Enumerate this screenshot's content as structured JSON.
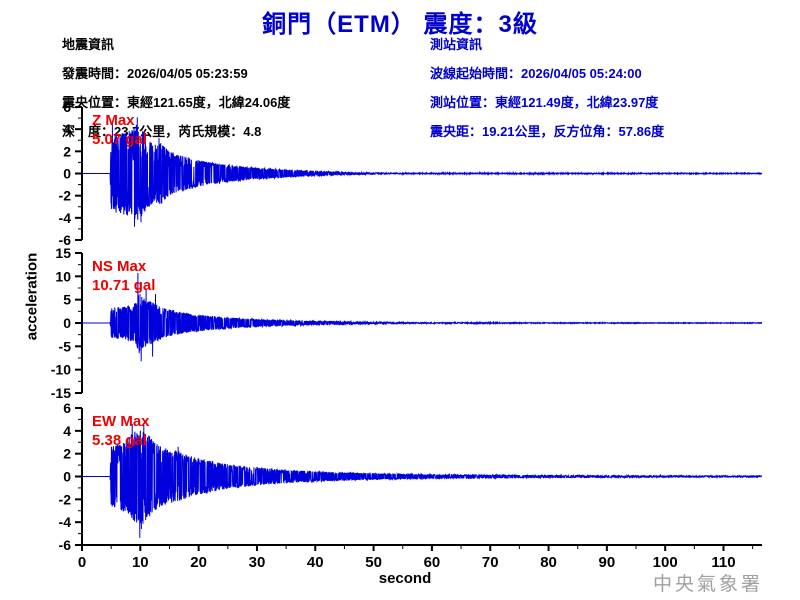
{
  "title": "銅門（ETM） 震度：3級",
  "event_info": {
    "heading": "地震資訊",
    "lines": [
      "發震時間：2026/04/05 05:23:59",
      "震央位置：東經121.65度，北緯24.06度",
      "深　度：23.7公里，芮氏規模：4.8"
    ]
  },
  "station_info": {
    "heading": "測站資訊",
    "lines": [
      "波線起始時間：2026/04/05 05:24:00",
      "測站位置：東經121.49度，北緯23.97度",
      "震央距：19.21公里，反方位角：57.86度"
    ]
  },
  "watermark": "中央氣象署",
  "colors": {
    "title": "#0000cc",
    "event_info": "#000000",
    "station_info": "#0000cc",
    "trace": "#0000dd",
    "trace_label": "#ee0000",
    "axis": "#000000",
    "watermark": "#a0a0a0"
  },
  "chart_data": {
    "type": "line",
    "title": "銅門（ETM） 震度：3級",
    "xlabel": "second",
    "ylabel": "acceleration",
    "xlim": [
      0,
      116.6
    ],
    "x_major_ticks": [
      0,
      10,
      20,
      30,
      40,
      50,
      60,
      70,
      80,
      90,
      100,
      110
    ],
    "x_minor_step": 5,
    "grid": false,
    "legend": "none",
    "traces": [
      {
        "name": "Z",
        "label": "Z Max",
        "max_text": "5.07 gal",
        "max_gal": 5.07,
        "ylim": [
          -6,
          6
        ],
        "y_major_ticks": [
          6,
          4,
          2,
          0,
          -2,
          -4,
          -6
        ],
        "y_minor_step": 1,
        "onset_s": 4.8,
        "envelope": [
          [
            0,
            0
          ],
          [
            4.8,
            0
          ],
          [
            5.0,
            3.4
          ],
          [
            6,
            3.6
          ],
          [
            8,
            3.8
          ],
          [
            9.5,
            4.5
          ],
          [
            10.5,
            3.8
          ],
          [
            11.5,
            3.0
          ],
          [
            12.5,
            2.6
          ],
          [
            13.5,
            2.8
          ],
          [
            15,
            2.0
          ],
          [
            17,
            1.6
          ],
          [
            20,
            1.2
          ],
          [
            24,
            0.85
          ],
          [
            28,
            0.6
          ],
          [
            32,
            0.45
          ],
          [
            36,
            0.32
          ],
          [
            40,
            0.22
          ],
          [
            45,
            0.12
          ],
          [
            50,
            0.07
          ],
          [
            55,
            0.04
          ],
          [
            116.6,
            0.03
          ]
        ],
        "spikes": [
          [
            5.2,
            4.6
          ],
          [
            9.0,
            -4.8
          ],
          [
            9.5,
            5.07
          ],
          [
            10.1,
            -4.4
          ],
          [
            13.2,
            3.2
          ]
        ]
      },
      {
        "name": "NS",
        "label": "NS Max",
        "max_text": "10.71 gal",
        "max_gal": 10.71,
        "ylim": [
          -15,
          15
        ],
        "y_major_ticks": [
          15,
          10,
          5,
          0,
          -5,
          -10,
          -15
        ],
        "y_minor_step": 2.5,
        "onset_s": 4.8,
        "envelope": [
          [
            0,
            0
          ],
          [
            4.8,
            0
          ],
          [
            5,
            3.2
          ],
          [
            7,
            3.5
          ],
          [
            9,
            4.0
          ],
          [
            9.8,
            6.5
          ],
          [
            11,
            5.0
          ],
          [
            12.5,
            4.2
          ],
          [
            14,
            3.2
          ],
          [
            16,
            2.6
          ],
          [
            18,
            2.1
          ],
          [
            20,
            1.8
          ],
          [
            24,
            1.3
          ],
          [
            28,
            0.95
          ],
          [
            32,
            0.7
          ],
          [
            36,
            0.55
          ],
          [
            40,
            0.42
          ],
          [
            45,
            0.3
          ],
          [
            50,
            0.22
          ],
          [
            55,
            0.15
          ],
          [
            60,
            0.1
          ],
          [
            80,
            0.06
          ],
          [
            116.6,
            0.05
          ]
        ],
        "spikes": [
          [
            9.6,
            10.71
          ],
          [
            10.15,
            -8.2
          ],
          [
            11.0,
            7.4
          ],
          [
            12.1,
            -7.2
          ],
          [
            12.6,
            6.2
          ]
        ]
      },
      {
        "name": "EW",
        "label": "EW Max",
        "max_text": "5.38 gal",
        "max_gal": 5.38,
        "ylim": [
          -6,
          6
        ],
        "y_major_ticks": [
          6,
          4,
          2,
          0,
          -2,
          -4,
          -6
        ],
        "y_minor_step": 1,
        "onset_s": 4.8,
        "envelope": [
          [
            0,
            0
          ],
          [
            4.8,
            0
          ],
          [
            5,
            2.6
          ],
          [
            6,
            2.8
          ],
          [
            7.5,
            3.2
          ],
          [
            9,
            4.0
          ],
          [
            10.5,
            4.2
          ],
          [
            11.5,
            3.6
          ],
          [
            12.5,
            3.0
          ],
          [
            14,
            2.5
          ],
          [
            16,
            2.3
          ],
          [
            18,
            1.9
          ],
          [
            20,
            1.6
          ],
          [
            24,
            1.15
          ],
          [
            28,
            0.9
          ],
          [
            32,
            0.7
          ],
          [
            36,
            0.55
          ],
          [
            40,
            0.45
          ],
          [
            45,
            0.35
          ],
          [
            50,
            0.28
          ],
          [
            55,
            0.22
          ],
          [
            60,
            0.18
          ],
          [
            80,
            0.1
          ],
          [
            100,
            0.07
          ],
          [
            116.6,
            0.06
          ]
        ],
        "spikes": [
          [
            8.6,
            4.6
          ],
          [
            9.9,
            -5.38
          ],
          [
            10.2,
            -4.6
          ],
          [
            10.6,
            4.5
          ],
          [
            16.5,
            2.6
          ]
        ]
      }
    ]
  }
}
